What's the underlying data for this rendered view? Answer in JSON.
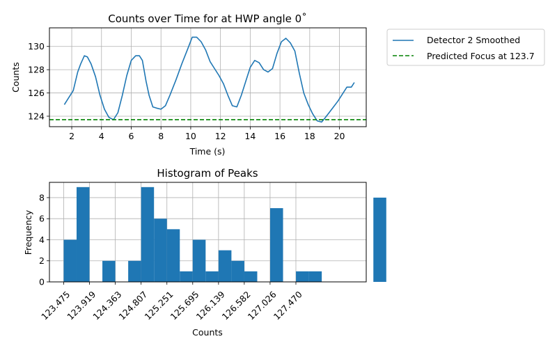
{
  "chart_data": [
    {
      "type": "line",
      "title": "Counts over Time for at HWP angle 0˚",
      "xlabel": "Time (s)",
      "ylabel": "Counts",
      "xlim": [
        0.5,
        21.8
      ],
      "ylim": [
        123.1,
        131.6
      ],
      "xticks": [
        2,
        4,
        6,
        8,
        10,
        12,
        14,
        16,
        18,
        20
      ],
      "yticks": [
        124,
        126,
        128,
        130
      ],
      "grid": true,
      "legend_position": "outside-right",
      "series": [
        {
          "name": "Detector 2 Smoothed",
          "color": "#1f77b4",
          "style": "solid",
          "x": [
            1.5,
            1.8,
            2.1,
            2.4,
            2.6,
            2.85,
            3.05,
            3.3,
            3.6,
            3.9,
            4.2,
            4.5,
            4.8,
            5.1,
            5.4,
            5.7,
            6.0,
            6.3,
            6.55,
            6.75,
            7.0,
            7.2,
            7.45,
            7.7,
            8.0,
            8.3,
            8.6,
            9.0,
            9.4,
            9.8,
            10.1,
            10.4,
            10.7,
            11.0,
            11.3,
            11.6,
            11.9,
            12.2,
            12.5,
            12.8,
            13.1,
            13.4,
            13.7,
            14.0,
            14.3,
            14.6,
            14.9,
            15.2,
            15.5,
            15.8,
            16.1,
            16.4,
            16.7,
            17.0,
            17.3,
            17.6,
            17.9,
            18.2,
            18.5,
            18.8,
            19.0,
            19.3,
            19.6,
            19.9,
            20.2,
            20.5,
            20.8,
            21.0
          ],
          "y": [
            125.0,
            125.6,
            126.2,
            127.8,
            128.5,
            129.2,
            129.1,
            128.5,
            127.4,
            125.8,
            124.6,
            123.9,
            123.7,
            124.3,
            125.8,
            127.5,
            128.8,
            129.2,
            129.2,
            128.8,
            127.0,
            125.8,
            124.8,
            124.7,
            124.6,
            124.9,
            125.8,
            127.1,
            128.5,
            129.8,
            130.8,
            130.8,
            130.4,
            129.7,
            128.7,
            128.1,
            127.5,
            126.8,
            125.8,
            124.9,
            124.8,
            125.8,
            127.0,
            128.2,
            128.8,
            128.6,
            128.0,
            127.8,
            128.1,
            129.4,
            130.4,
            130.7,
            130.3,
            129.6,
            127.7,
            126.0,
            125.0,
            124.2,
            123.6,
            123.5,
            123.8,
            124.3,
            124.8,
            125.3,
            125.9,
            126.5,
            126.5,
            126.9
          ]
        },
        {
          "name": "Predicted Focus at 123.7",
          "color": "#008000",
          "style": "dashed",
          "y_constant": 123.7
        }
      ]
    },
    {
      "type": "bar",
      "title": "Histogram of Peaks",
      "xlabel": "Counts",
      "ylabel": "Frequency",
      "xlim": [
        123.23,
        128.68
      ],
      "ylim": [
        0,
        9.45
      ],
      "xticks": [
        "123.475",
        "123.919",
        "124.363",
        "124.807",
        "125.251",
        "125.695",
        "126.139",
        "126.582",
        "127.026",
        "127.470"
      ],
      "xtick_values": [
        123.475,
        123.919,
        124.363,
        124.807,
        125.251,
        125.695,
        126.139,
        126.582,
        127.026,
        127.47
      ],
      "yticks": [
        0,
        2,
        4,
        6,
        8
      ],
      "grid": true,
      "bin_start": 123.475,
      "bin_width": 0.222,
      "color": "#1f77b4",
      "values": [
        4,
        9,
        0,
        2,
        0,
        2,
        9,
        6,
        5,
        1,
        4,
        1,
        3,
        2,
        1,
        0,
        7,
        0,
        1,
        1,
        0,
        0,
        0,
        0,
        8
      ]
    }
  ]
}
